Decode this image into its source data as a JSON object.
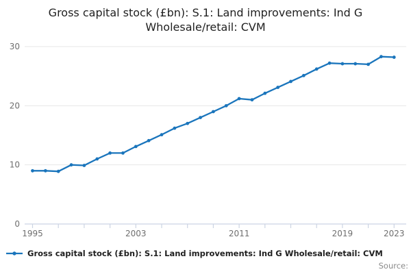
{
  "title": "Gross capital stock (£bn): S.1: Land improvements: Ind G Wholesale/retail: CVM",
  "legend": {
    "label": "Gross capital stock (£bn): S.1: Land improvements: Ind G Wholesale/retail: CVM"
  },
  "source_label": "Source:",
  "colors": {
    "line": "#1a75bc",
    "grid": "#e7e7e7",
    "axis": "#ccd4e3",
    "tick_label": "#6e6e6e",
    "title_text": "#1f1f1f"
  },
  "chart_data": {
    "type": "line",
    "title": "Gross capital stock (£bn): S.1: Land improvements: Ind G Wholesale/retail: CVM",
    "xlabel": "",
    "ylabel": "",
    "x": [
      1995,
      1996,
      1997,
      1998,
      1999,
      2000,
      2001,
      2002,
      2003,
      2004,
      2005,
      2006,
      2007,
      2008,
      2009,
      2010,
      2011,
      2012,
      2013,
      2014,
      2015,
      2016,
      2017,
      2018,
      2019,
      2020,
      2021,
      2022,
      2023
    ],
    "series": [
      {
        "name": "Gross capital stock (£bn): S.1: Land improvements: Ind G Wholesale/retail: CVM",
        "values": [
          9.0,
          9.0,
          8.9,
          10.0,
          9.9,
          11.0,
          12.0,
          12.0,
          13.1,
          14.1,
          15.1,
          16.2,
          17.0,
          18.0,
          19.0,
          20.0,
          21.2,
          21.0,
          22.1,
          23.1,
          24.1,
          25.1,
          26.2,
          27.2,
          27.1,
          27.1,
          27.0,
          28.3,
          28.2
        ]
      }
    ],
    "xlim": [
      1994.4,
      2023.9
    ],
    "ylim": [
      0,
      30.7
    ],
    "yticks": [
      0,
      10,
      20,
      30
    ],
    "xticks_minor": [
      1995,
      1997,
      1999,
      2001,
      2003,
      2005,
      2007,
      2009,
      2011,
      2013,
      2015,
      2017,
      2019,
      2021,
      2023
    ],
    "xticks_labeled": [
      1995,
      2003,
      2011,
      2019,
      2023
    ],
    "grid": "horizontal",
    "legend_position": "bottom-left",
    "marker": "circle"
  }
}
